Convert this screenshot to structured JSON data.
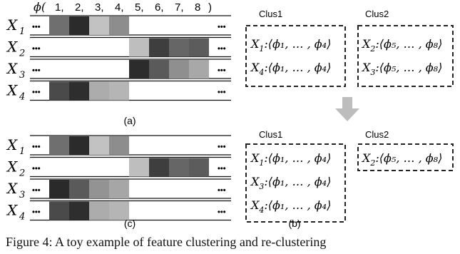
{
  "panel_a": {
    "phi_label": "ϕ(",
    "phi_indices": [
      "1,",
      "2,",
      "3,",
      "4,",
      "5,",
      "6,",
      "7,",
      "8",
      ")"
    ],
    "rows": [
      {
        "label": "X",
        "sub": "1",
        "cells": [
          "#6f6f6f",
          "#2b2b2b",
          "#c2c2c2",
          "#8d8d8d",
          null,
          null,
          null,
          null
        ]
      },
      {
        "label": "X",
        "sub": "2",
        "cells": [
          null,
          null,
          null,
          null,
          "#bebebe",
          "#3e3e3e",
          "#666666",
          "#5c5c5c"
        ]
      },
      {
        "label": "X",
        "sub": "3",
        "cells": [
          null,
          null,
          null,
          null,
          "#2c2c2c",
          "#5a5a5a",
          "#8f8f8f",
          "#a8a8a8"
        ]
      },
      {
        "label": "X",
        "sub": "4",
        "cells": [
          "#4a4a4a",
          "#2e2e2e",
          "#acacac",
          "#b5b5b5",
          null,
          null,
          null,
          null
        ]
      }
    ],
    "ellipsis": "•••",
    "caption": "(a)"
  },
  "panel_c": {
    "rows": [
      {
        "label": "X",
        "sub": "1",
        "cells": [
          "#6f6f6f",
          "#2b2b2b",
          "#c2c2c2",
          "#8d8d8d",
          null,
          null,
          null,
          null
        ]
      },
      {
        "label": "X",
        "sub": "2",
        "cells": [
          null,
          null,
          null,
          null,
          "#bebebe",
          "#3e3e3e",
          "#666666",
          "#5c5c5c"
        ]
      },
      {
        "label": "X",
        "sub": "3",
        "cells": [
          "#2a2a2a",
          "#5a5a5a",
          "#939393",
          "#a6a6a6",
          null,
          null,
          null,
          null
        ]
      },
      {
        "label": "X",
        "sub": "4",
        "cells": [
          "#4a4a4a",
          "#2e2e2e",
          "#acacac",
          "#b5b5b5",
          null,
          null,
          null,
          null
        ]
      }
    ],
    "ellipsis": "•••",
    "caption": "(c)"
  },
  "panel_b_top": {
    "clus1_title": "Clus1",
    "clus2_title": "Clus2",
    "clus1_entries": [
      {
        "x": "X",
        "sub": "1",
        "range": "⟨ϕ₁, … , ϕ₄⟩"
      },
      {
        "x": "X",
        "sub": "4",
        "range": "⟨ϕ₁, … , ϕ₄⟩"
      }
    ],
    "clus2_entries": [
      {
        "x": "X",
        "sub": "2",
        "range": "⟨ϕ₅, … , ϕ₈⟩"
      },
      {
        "x": "X",
        "sub": "3",
        "range": "⟨ϕ₅, … , ϕ₈⟩"
      }
    ]
  },
  "panel_b_bottom": {
    "clus1_title": "Clus1",
    "clus2_title": "Clus2",
    "clus1_entries": [
      {
        "x": "X",
        "sub": "1",
        "range": "⟨ϕ₁, … , ϕ₄⟩"
      },
      {
        "x": "X",
        "sub": "3",
        "range": "⟨ϕ₁, … , ϕ₄⟩"
      },
      {
        "x": "X",
        "sub": "4",
        "range": "⟨ϕ₁, … , ϕ₄⟩"
      }
    ],
    "clus2_entries": [
      {
        "x": "X",
        "sub": "2",
        "range": "⟨ϕ₅, … , ϕ₈⟩"
      }
    ],
    "caption": "(b)"
  },
  "figure_caption": "Figure 4: A toy example of feature clustering and re-clustering"
}
